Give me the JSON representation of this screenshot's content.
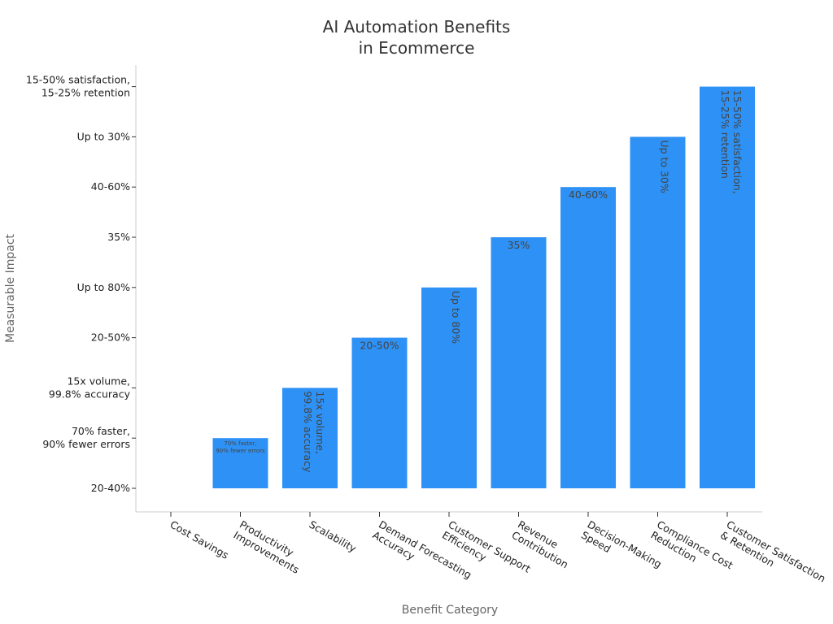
{
  "chart_data": {
    "type": "bar",
    "title": [
      "AI Automation Benefits",
      "in Ecommerce"
    ],
    "xlabel": "Benefit Category",
    "ylabel": "Measurable Impact",
    "grid": false,
    "legend": "none",
    "bar_color": "#2e91f5",
    "y_categories": [
      "20-40%",
      "70% faster,\n90% fewer errors",
      "15x volume,\n99.8% accuracy",
      "20-50%",
      "Up to 80%",
      "35%",
      "40-60%",
      "Up to 30%",
      "15-50% satisfaction,\n15-25% retention"
    ],
    "categories": [
      "Cost Savings",
      "Productivity\nImprovements",
      "Scalability",
      "Demand Forecasting\nAccuracy",
      "Customer Support\nEfficiency",
      "Revenue\nContribution",
      "Decision-Making\nSpeed",
      "Compliance Cost\nReduction",
      "Customer Satisfaction\n& Retention"
    ],
    "values": [
      "20-40%",
      "70% faster,\n90% fewer errors",
      "15x volume,\n99.8% accuracy",
      "20-50%",
      "Up to 80%",
      "35%",
      "40-60%",
      "Up to 30%",
      "15-50% satisfaction,\n15-25% retention"
    ],
    "value_index": [
      0,
      1,
      2,
      3,
      4,
      5,
      6,
      7,
      8
    ],
    "data_labels": [
      "",
      "70% faster,\n90% fewer errors",
      "15x volume,\n99.8% accuracy",
      "20-50%",
      "Up to 80%",
      "35%",
      "40-60%",
      "Up to 30%",
      "15-50% satisfaction,\n15-25% retention"
    ]
  }
}
